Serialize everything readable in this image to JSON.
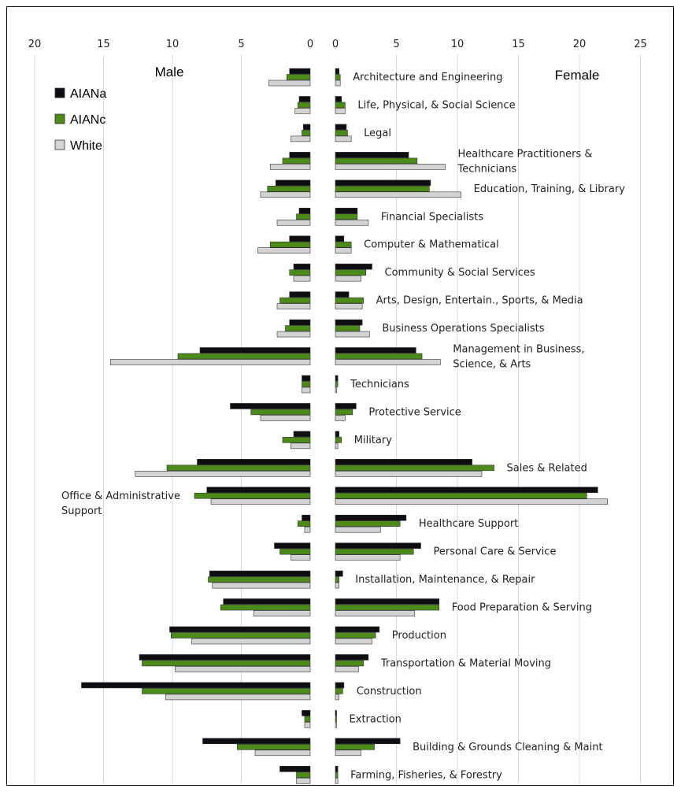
{
  "chart_data": {
    "type": "bar",
    "orientation": "horizontal-population-pyramid",
    "left_panel_label": "Male",
    "right_panel_label": "Female",
    "male_axis_ticks": [
      "20",
      "15",
      "10",
      "5",
      "0"
    ],
    "female_axis_ticks": [
      "0",
      "5",
      "10",
      "15",
      "20",
      "25"
    ],
    "male_xlim": [
      0,
      20
    ],
    "female_xlim": [
      0,
      25
    ],
    "grid": "vertical gridlines",
    "legend_position": "top-left",
    "colors": {
      "AIANa": "#0d0d12",
      "AIANc": "#4c8a1a",
      "White": "#d3d3d3"
    },
    "categories": [
      [
        "Architecture and Engineering"
      ],
      [
        "Life, Physical, & Social Science"
      ],
      [
        "Legal"
      ],
      [
        "Healthcare Practitioners &",
        "Technicians"
      ],
      [
        "Education, Training, & Library"
      ],
      [
        "Financial Specialists"
      ],
      [
        "Computer & Mathematical"
      ],
      [
        "Community & Social Services"
      ],
      [
        "Arts, Design, Entertain., Sports, & Media"
      ],
      [
        "Business Operations Specialists"
      ],
      [
        "Management in Business,",
        "Science, & Arts"
      ],
      [
        "Technicians"
      ],
      [
        "Protective Service"
      ],
      [
        "Military"
      ],
      [
        "Sales & Related"
      ],
      [
        "Office & Administrative",
        "Support"
      ],
      [
        "Healthcare Support"
      ],
      [
        "Personal Care & Service"
      ],
      [
        "Installation, Maintenance, & Repair"
      ],
      [
        "Food Preparation & Serving"
      ],
      [
        "Production"
      ],
      [
        "Transportation & Material Moving"
      ],
      [
        "Construction"
      ],
      [
        "Extraction"
      ],
      [
        "Building & Grounds Cleaning & Maint"
      ],
      [
        "Farming, Fisheries, & Forestry"
      ]
    ],
    "series": [
      {
        "name": "AIANa",
        "male": [
          1.5,
          0.8,
          0.5,
          1.5,
          2.5,
          0.8,
          1.5,
          1.2,
          1.5,
          1.5,
          8.0,
          0.6,
          5.8,
          1.2,
          8.2,
          7.5,
          0.6,
          2.6,
          7.3,
          6.3,
          10.2,
          12.4,
          16.6,
          0.6,
          7.8,
          2.2
        ],
        "female": [
          0.3,
          0.5,
          0.9,
          6.0,
          7.8,
          1.8,
          0.7,
          3.0,
          1.1,
          2.2,
          6.6,
          0.2,
          1.7,
          0.3,
          11.2,
          21.5,
          5.8,
          7.0,
          0.6,
          8.5,
          3.6,
          2.7,
          0.7,
          0.1,
          5.3,
          0.2
        ]
      },
      {
        "name": "AIANc",
        "male": [
          1.7,
          0.9,
          0.6,
          2.0,
          3.1,
          1.0,
          2.9,
          1.5,
          2.2,
          1.8,
          9.6,
          0.6,
          4.3,
          2.0,
          10.4,
          8.4,
          0.9,
          2.2,
          7.4,
          6.5,
          10.1,
          12.2,
          12.2,
          0.4,
          5.3,
          1.0
        ],
        "female": [
          0.4,
          0.8,
          1.0,
          6.7,
          7.7,
          1.8,
          1.3,
          2.5,
          2.3,
          2.0,
          7.1,
          0.2,
          1.4,
          0.5,
          13.0,
          20.6,
          5.3,
          6.4,
          0.3,
          8.5,
          3.3,
          2.3,
          0.6,
          0.1,
          3.2,
          0.2
        ]
      },
      {
        "name": "White",
        "male": [
          3.0,
          1.1,
          1.4,
          2.9,
          3.6,
          2.4,
          3.8,
          1.2,
          2.4,
          2.4,
          14.5,
          0.6,
          3.6,
          1.4,
          12.7,
          7.2,
          0.4,
          1.4,
          7.1,
          4.1,
          8.6,
          9.8,
          10.5,
          0.4,
          4.0,
          1.0
        ],
        "female": [
          0.4,
          0.8,
          1.3,
          9.0,
          10.3,
          2.7,
          1.3,
          2.1,
          2.2,
          2.8,
          8.6,
          0.1,
          0.8,
          0.2,
          12.0,
          22.3,
          3.7,
          5.3,
          0.3,
          6.5,
          3.0,
          1.9,
          0.3,
          0.1,
          2.1,
          0.2
        ]
      }
    ]
  }
}
